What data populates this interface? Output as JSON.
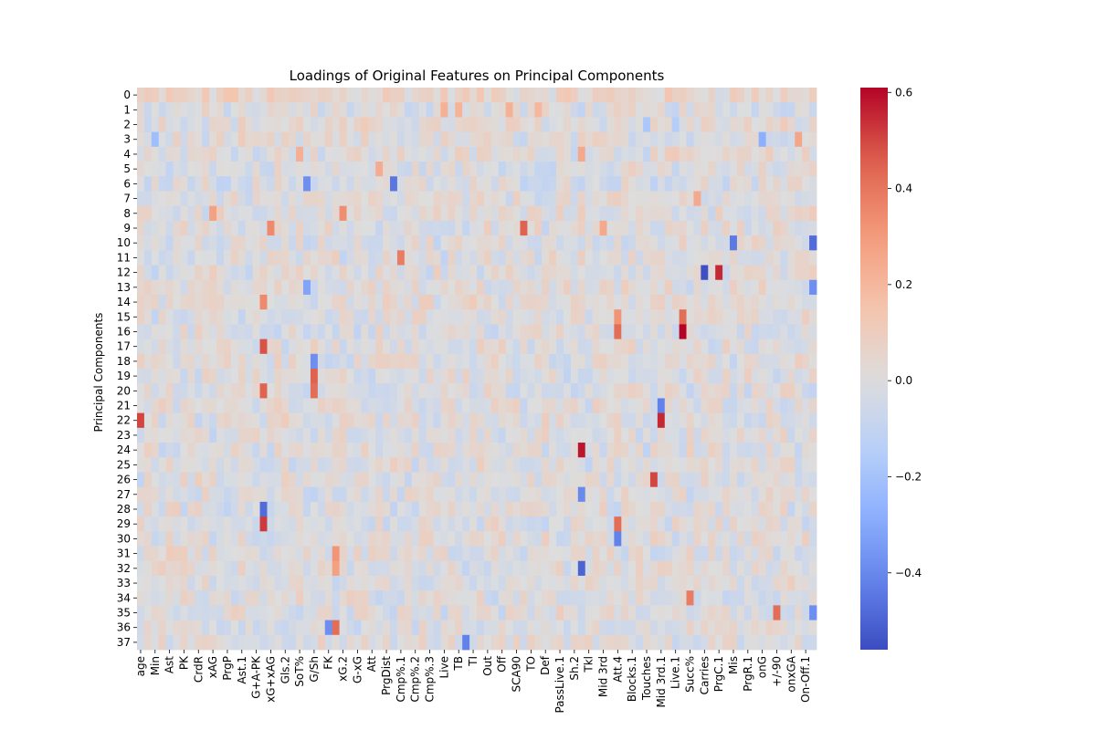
{
  "chart_data": {
    "type": "heatmap",
    "title": "Loadings of Original Features on Principal Components",
    "xlabel": "",
    "ylabel": "Principal Components",
    "rows": [
      "0",
      "1",
      "2",
      "3",
      "4",
      "5",
      "6",
      "7",
      "8",
      "9",
      "10",
      "11",
      "12",
      "13",
      "14",
      "15",
      "16",
      "17",
      "18",
      "19",
      "20",
      "21",
      "22",
      "23",
      "24",
      "25",
      "26",
      "27",
      "28",
      "29",
      "30",
      "31",
      "32",
      "33",
      "34",
      "35",
      "36",
      "37"
    ],
    "x_tick_labels": [
      "age",
      "Min",
      "Ast",
      "PK",
      "CrdR",
      "xAG",
      "PrgP",
      "Ast.1",
      "G+A-PK",
      "xG+xAG",
      "Gls.2",
      "SoT%",
      "G/Sh",
      "FK",
      "xG.2",
      "G-xG",
      "Att",
      "PrgDist",
      "Cmp%.1",
      "Cmp%.2",
      "Cmp%.3",
      "Live",
      "TB",
      "TI",
      "Out",
      "Off",
      "SCA90",
      "TO",
      "Def",
      "PassLive.1",
      "Sh.2",
      "Tkl",
      "Mid 3rd",
      "Att.4",
      "Blocks.1",
      "Touches",
      "Mid 3rd.1",
      "Live.1",
      "Succ%",
      "Carries",
      "PrgC.1",
      "Mis",
      "PrgR.1",
      "onG",
      "+/-90",
      "onxGA",
      "On-Off.1"
    ],
    "n_columns": 94,
    "value_range": [
      -0.56,
      0.61
    ],
    "colormap": "coolwarm",
    "colorbar_ticks": [
      {
        "value": 0.6,
        "label": "0.6"
      },
      {
        "value": 0.4,
        "label": "0.4"
      },
      {
        "value": 0.2,
        "label": "0.2"
      },
      {
        "value": 0.0,
        "label": "0.0"
      },
      {
        "value": -0.2,
        "label": "−0.2"
      },
      {
        "value": -0.4,
        "label": "−0.4"
      }
    ],
    "base_values_by_row": [
      0.09,
      -0.02,
      0.03,
      0.0,
      0.02,
      -0.02,
      -0.03,
      0.0,
      0.01,
      0.0,
      -0.01,
      0.0,
      -0.01,
      0.0,
      0.02,
      0.0,
      -0.01,
      0.0,
      0.0,
      -0.01,
      0.0,
      0.01,
      0.0,
      0.0,
      0.0,
      -0.01,
      0.0,
      -0.01,
      0.0,
      0.0,
      0.0,
      0.01,
      0.0,
      0.0,
      0.0,
      0.0,
      -0.01,
      0.0
    ],
    "highlights": [
      {
        "row": 0,
        "col": 4,
        "value": 0.12
      },
      {
        "row": 0,
        "col": 12,
        "value": 0.14
      },
      {
        "row": 0,
        "col": 34,
        "value": 0.12
      },
      {
        "row": 1,
        "col": 51,
        "value": 0.22
      },
      {
        "row": 1,
        "col": 55,
        "value": 0.2
      },
      {
        "row": 1,
        "col": 42,
        "value": 0.22
      },
      {
        "row": 1,
        "col": 44,
        "value": 0.21
      },
      {
        "row": 2,
        "col": 70,
        "value": -0.18
      },
      {
        "row": 2,
        "col": 74,
        "value": -0.15
      },
      {
        "row": 3,
        "col": 2,
        "value": -0.22
      },
      {
        "row": 3,
        "col": 91,
        "value": 0.26
      },
      {
        "row": 3,
        "col": 86,
        "value": -0.28
      },
      {
        "row": 4,
        "col": 61,
        "value": 0.25
      },
      {
        "row": 4,
        "col": 22,
        "value": 0.23
      },
      {
        "row": 5,
        "col": 33,
        "value": 0.24
      },
      {
        "row": 6,
        "col": 23,
        "value": -0.38
      },
      {
        "row": 6,
        "col": 35,
        "value": -0.45
      },
      {
        "row": 7,
        "col": 77,
        "value": 0.25
      },
      {
        "row": 8,
        "col": 10,
        "value": 0.28
      },
      {
        "row": 8,
        "col": 28,
        "value": 0.34
      },
      {
        "row": 9,
        "col": 18,
        "value": 0.35
      },
      {
        "row": 9,
        "col": 53,
        "value": 0.45
      },
      {
        "row": 9,
        "col": 64,
        "value": 0.25
      },
      {
        "row": 10,
        "col": 82,
        "value": -0.44
      },
      {
        "row": 10,
        "col": 93,
        "value": -0.48
      },
      {
        "row": 11,
        "col": 36,
        "value": 0.38
      },
      {
        "row": 12,
        "col": 78,
        "value": -0.55
      },
      {
        "row": 12,
        "col": 80,
        "value": 0.55
      },
      {
        "row": 13,
        "col": 23,
        "value": -0.32
      },
      {
        "row": 13,
        "col": 93,
        "value": -0.38
      },
      {
        "row": 14,
        "col": 17,
        "value": 0.35
      },
      {
        "row": 15,
        "col": 66,
        "value": 0.32
      },
      {
        "row": 15,
        "col": 75,
        "value": 0.42
      },
      {
        "row": 16,
        "col": 75,
        "value": 0.61
      },
      {
        "row": 16,
        "col": 66,
        "value": 0.42
      },
      {
        "row": 17,
        "col": 17,
        "value": 0.48
      },
      {
        "row": 18,
        "col": 24,
        "value": -0.38
      },
      {
        "row": 19,
        "col": 24,
        "value": 0.45
      },
      {
        "row": 20,
        "col": 17,
        "value": 0.45
      },
      {
        "row": 20,
        "col": 24,
        "value": 0.42
      },
      {
        "row": 21,
        "col": 72,
        "value": -0.42
      },
      {
        "row": 22,
        "col": 0,
        "value": 0.5
      },
      {
        "row": 22,
        "col": 72,
        "value": 0.55
      },
      {
        "row": 24,
        "col": 61,
        "value": 0.58
      },
      {
        "row": 26,
        "col": 71,
        "value": 0.5
      },
      {
        "row": 27,
        "col": 61,
        "value": -0.4
      },
      {
        "row": 28,
        "col": 17,
        "value": -0.48
      },
      {
        "row": 29,
        "col": 17,
        "value": 0.52
      },
      {
        "row": 29,
        "col": 66,
        "value": 0.42
      },
      {
        "row": 30,
        "col": 66,
        "value": -0.42
      },
      {
        "row": 31,
        "col": 27,
        "value": 0.32
      },
      {
        "row": 32,
        "col": 61,
        "value": -0.5
      },
      {
        "row": 32,
        "col": 27,
        "value": 0.28
      },
      {
        "row": 34,
        "col": 76,
        "value": 0.38
      },
      {
        "row": 35,
        "col": 88,
        "value": 0.42
      },
      {
        "row": 35,
        "col": 93,
        "value": -0.38
      },
      {
        "row": 36,
        "col": 27,
        "value": 0.42
      },
      {
        "row": 36,
        "col": 26,
        "value": -0.38
      },
      {
        "row": 37,
        "col": 45,
        "value": -0.42
      }
    ]
  }
}
